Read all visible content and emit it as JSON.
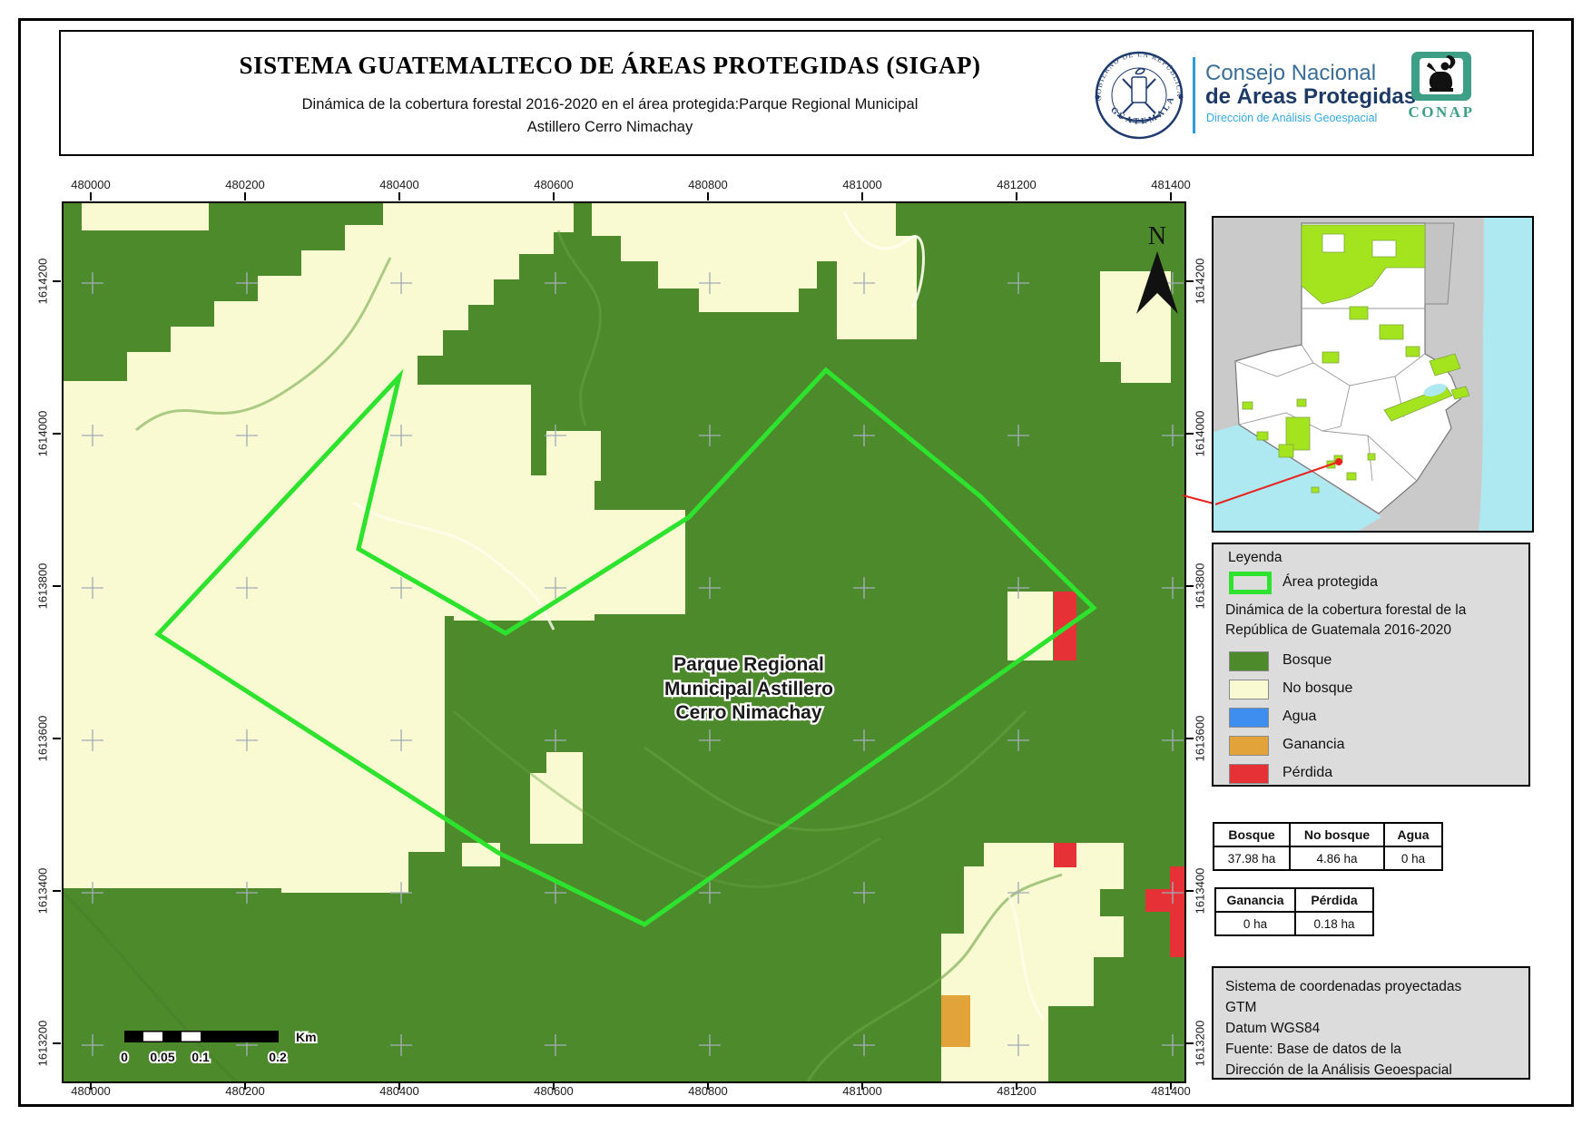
{
  "header": {
    "title": "SISTEMA GUATEMALTECO DE ÁREAS PROTEGIDAS  (SIGAP)",
    "subtitle_line1": "Dinámica de la cobertura forestal 2016-2020 en el área protegida:Parque Regional Municipal",
    "subtitle_line2": "Astillero Cerro Nimachay",
    "seal": {
      "top": "GOBIERNO DE LA REPÚBLICA",
      "bottom": "GUATEMALA"
    },
    "org": {
      "line1": "Consejo Nacional",
      "line2": "de Áreas Protegidas",
      "line3": "Dirección de Análisis Geoespacial"
    },
    "conap": "CONAP"
  },
  "map": {
    "axis_x": [
      "480000",
      "480200",
      "480400",
      "480600",
      "480800",
      "481000",
      "481200",
      "481400"
    ],
    "axis_y": [
      "1614200",
      "1614000",
      "1613800",
      "1613600",
      "1613400",
      "1613200"
    ],
    "north_label": "N",
    "place_label": [
      "Parque Regional",
      "Municipal Astillero",
      "Cerro Nimachay"
    ],
    "scalebar": {
      "labels": [
        "0",
        "0.05",
        "0.1",
        "0.2"
      ],
      "unit": "Km"
    }
  },
  "legend": {
    "title": "Leyenda",
    "area_item": "Área protegida",
    "boundary_color": "#2EE32E",
    "subtitle_line1": "Dinámica de la cobertura forestal de la",
    "subtitle_line2": "República de Guatemala 2016-2020",
    "items": [
      {
        "label": "Bosque",
        "color": "#4D8A2C"
      },
      {
        "label": "No bosque",
        "color": "#FAFAD2"
      },
      {
        "label": "Agua",
        "color": "#3E8EF0"
      },
      {
        "label": "Ganancia",
        "color": "#E2A33B"
      },
      {
        "label": "Pérdida",
        "color": "#E63137"
      }
    ]
  },
  "tables": {
    "coverage": {
      "headers": [
        "Bosque",
        "No bosque",
        "Agua"
      ],
      "values": [
        "37.98 ha",
        "4.86 ha",
        "0 ha"
      ]
    },
    "change": {
      "headers": [
        "Ganancia",
        "Pérdida"
      ],
      "values": [
        "0 ha",
        "0.18 ha"
      ]
    }
  },
  "projection": {
    "lines": [
      "Sistema de coordenadas proyectadas",
      "GTM",
      "Datum WGS84",
      "Fuente: Base de datos de la",
      "Dirección de la Análisis Geoespacial"
    ]
  }
}
